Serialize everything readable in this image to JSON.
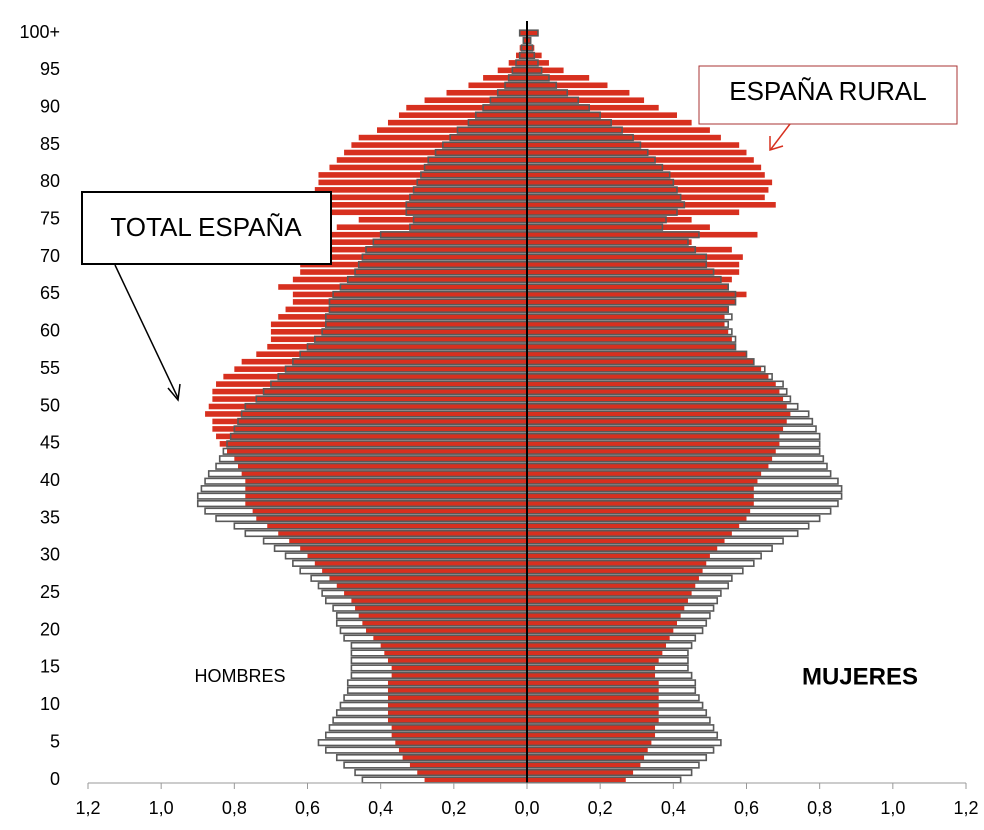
{
  "chart_data": {
    "type": "pyramid",
    "categories": [
      0,
      null,
      null,
      null,
      null,
      5,
      null,
      null,
      null,
      null,
      10,
      null,
      null,
      null,
      null,
      15,
      null,
      null,
      null,
      null,
      20,
      null,
      null,
      null,
      null,
      25,
      null,
      null,
      null,
      null,
      30,
      null,
      null,
      null,
      null,
      35,
      null,
      null,
      null,
      null,
      40,
      null,
      null,
      null,
      null,
      45,
      null,
      null,
      null,
      null,
      50,
      null,
      null,
      null,
      null,
      55,
      null,
      null,
      null,
      null,
      60,
      null,
      null,
      null,
      null,
      65,
      null,
      null,
      null,
      null,
      70,
      null,
      null,
      null,
      null,
      75,
      null,
      null,
      null,
      null,
      80,
      null,
      null,
      null,
      null,
      85,
      null,
      null,
      null,
      null,
      90,
      null,
      null,
      null,
      null,
      95,
      null,
      null,
      null,
      null,
      "100+"
    ],
    "sides": [
      "HOMBRES",
      "MUJERES"
    ],
    "series": [
      {
        "name": "TOTAL ESPAÑA",
        "color": "#595959",
        "male": [
          0.45,
          0.47,
          0.5,
          0.52,
          0.55,
          0.57,
          0.55,
          0.54,
          0.53,
          0.52,
          0.51,
          0.5,
          0.49,
          0.49,
          0.48,
          0.48,
          0.48,
          0.48,
          0.48,
          0.5,
          0.51,
          0.52,
          0.52,
          0.53,
          0.55,
          0.56,
          0.57,
          0.59,
          0.62,
          0.64,
          0.66,
          0.69,
          0.72,
          0.77,
          0.8,
          0.85,
          0.88,
          0.9,
          0.9,
          0.89,
          0.88,
          0.87,
          0.85,
          0.84,
          0.83,
          0.82,
          0.81,
          0.8,
          0.79,
          0.78,
          0.77,
          0.74,
          0.72,
          0.7,
          0.68,
          0.66,
          0.64,
          0.62,
          0.6,
          0.58,
          0.56,
          0.55,
          0.55,
          0.54,
          0.54,
          0.53,
          0.51,
          0.49,
          0.47,
          0.46,
          0.45,
          0.44,
          0.42,
          0.4,
          0.32,
          0.31,
          0.33,
          0.33,
          0.32,
          0.31,
          0.3,
          0.29,
          0.28,
          0.27,
          0.25,
          0.23,
          0.21,
          0.19,
          0.16,
          0.14,
          0.12,
          0.1,
          0.08,
          0.06,
          0.05,
          0.04,
          0.03,
          0.02,
          0.015,
          0.01,
          0.02
        ],
        "female": [
          0.42,
          0.45,
          0.47,
          0.49,
          0.51,
          0.53,
          0.52,
          0.51,
          0.5,
          0.49,
          0.48,
          0.47,
          0.46,
          0.46,
          0.45,
          0.44,
          0.44,
          0.44,
          0.45,
          0.46,
          0.48,
          0.49,
          0.5,
          0.51,
          0.52,
          0.53,
          0.55,
          0.56,
          0.59,
          0.62,
          0.64,
          0.67,
          0.7,
          0.74,
          0.77,
          0.8,
          0.83,
          0.85,
          0.86,
          0.86,
          0.85,
          0.83,
          0.82,
          0.81,
          0.8,
          0.8,
          0.8,
          0.79,
          0.78,
          0.77,
          0.74,
          0.72,
          0.71,
          0.7,
          0.67,
          0.65,
          0.62,
          0.6,
          0.57,
          0.57,
          0.56,
          0.55,
          0.56,
          0.55,
          0.57,
          0.57,
          0.55,
          0.53,
          0.51,
          0.49,
          0.49,
          0.46,
          0.44,
          0.47,
          0.37,
          0.38,
          0.41,
          0.43,
          0.42,
          0.41,
          0.4,
          0.39,
          0.37,
          0.35,
          0.33,
          0.31,
          0.29,
          0.26,
          0.23,
          0.2,
          0.17,
          0.14,
          0.11,
          0.08,
          0.06,
          0.04,
          0.03,
          0.02,
          0.015,
          0.01,
          0.03
        ]
      },
      {
        "name": "ESPAÑA RURAL",
        "color": "#d7301f",
        "male": [
          0.28,
          0.3,
          0.32,
          0.34,
          0.35,
          0.36,
          0.37,
          0.37,
          0.38,
          0.38,
          0.38,
          0.38,
          0.38,
          0.38,
          0.37,
          0.37,
          0.38,
          0.39,
          0.4,
          0.42,
          0.44,
          0.45,
          0.46,
          0.47,
          0.48,
          0.5,
          0.52,
          0.54,
          0.56,
          0.58,
          0.6,
          0.62,
          0.65,
          0.68,
          0.71,
          0.74,
          0.75,
          0.77,
          0.77,
          0.77,
          0.77,
          0.78,
          0.79,
          0.8,
          0.82,
          0.84,
          0.85,
          0.86,
          0.86,
          0.88,
          0.87,
          0.86,
          0.86,
          0.85,
          0.83,
          0.8,
          0.78,
          0.74,
          0.71,
          0.7,
          0.7,
          0.7,
          0.68,
          0.66,
          0.64,
          0.64,
          0.68,
          0.64,
          0.62,
          0.62,
          0.61,
          0.61,
          0.6,
          0.56,
          0.52,
          0.46,
          0.54,
          0.57,
          0.6,
          0.58,
          0.57,
          0.57,
          0.54,
          0.52,
          0.5,
          0.48,
          0.46,
          0.41,
          0.38,
          0.35,
          0.33,
          0.28,
          0.22,
          0.16,
          0.12,
          0.08,
          0.05,
          0.03,
          0.02,
          0.01,
          0.02
        ],
        "female": [
          0.27,
          0.29,
          0.31,
          0.32,
          0.33,
          0.34,
          0.35,
          0.35,
          0.36,
          0.36,
          0.36,
          0.36,
          0.36,
          0.36,
          0.35,
          0.35,
          0.36,
          0.37,
          0.38,
          0.39,
          0.4,
          0.41,
          0.42,
          0.43,
          0.44,
          0.45,
          0.46,
          0.47,
          0.48,
          0.49,
          0.5,
          0.52,
          0.54,
          0.56,
          0.58,
          0.6,
          0.61,
          0.62,
          0.62,
          0.62,
          0.63,
          0.64,
          0.66,
          0.67,
          0.68,
          0.69,
          0.69,
          0.7,
          0.71,
          0.72,
          0.71,
          0.7,
          0.69,
          0.68,
          0.66,
          0.64,
          0.62,
          0.6,
          0.57,
          0.56,
          0.55,
          0.54,
          0.54,
          0.55,
          0.57,
          0.6,
          0.55,
          0.56,
          0.58,
          0.58,
          0.59,
          0.56,
          0.45,
          0.63,
          0.5,
          0.45,
          0.58,
          0.68,
          0.65,
          0.66,
          0.67,
          0.65,
          0.64,
          0.62,
          0.6,
          0.58,
          0.53,
          0.5,
          0.45,
          0.41,
          0.36,
          0.32,
          0.28,
          0.22,
          0.17,
          0.1,
          0.06,
          0.04,
          0.02,
          0.01,
          0.03
        ]
      }
    ],
    "xlim": [
      -1.2,
      1.2
    ],
    "xticks": [
      {
        "value": -1.2,
        "label": "1,2"
      },
      {
        "value": -1.0,
        "label": "1,0"
      },
      {
        "value": -0.8,
        "label": "0,8"
      },
      {
        "value": -0.6,
        "label": "0,6"
      },
      {
        "value": -0.4,
        "label": "0,4"
      },
      {
        "value": -0.2,
        "label": "0,2"
      },
      {
        "value": 0,
        "label": "0,0"
      },
      {
        "value": 0.2,
        "label": "0,2"
      },
      {
        "value": 0.4,
        "label": "0,4"
      },
      {
        "value": 0.6,
        "label": "0,6"
      },
      {
        "value": 0.8,
        "label": "0,8"
      },
      {
        "value": 1.0,
        "label": "1,0"
      },
      {
        "value": 1.2,
        "label": "1,2"
      }
    ]
  }
}
